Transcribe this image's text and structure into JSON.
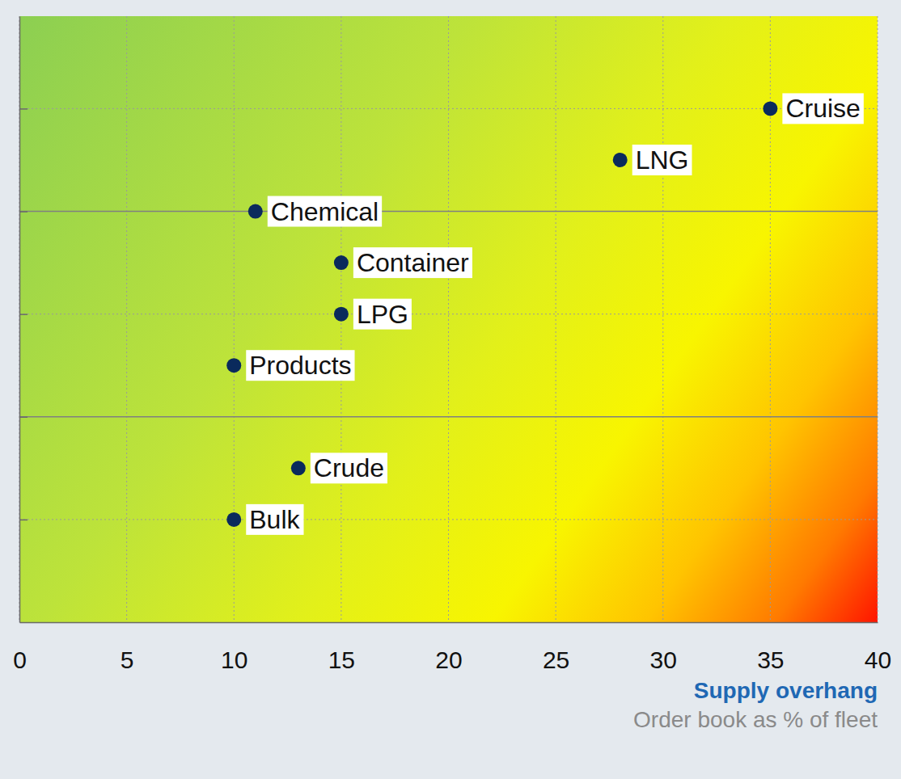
{
  "chart_data": {
    "type": "scatter",
    "xlabel": {
      "title": "Supply overhang",
      "subtitle": "Order book as % of fleet"
    },
    "labels": [
      "Cruise",
      "LNG",
      "Chemical",
      "Container",
      "LPG",
      "Products",
      "Crude",
      "Bulk"
    ],
    "x": [
      35,
      28,
      11,
      15,
      15,
      10,
      13,
      10
    ],
    "values": [
      5,
      4.5,
      4,
      3.5,
      3,
      2.5,
      1.5,
      1
    ],
    "xlim": [
      0,
      40
    ],
    "xticks": [
      0,
      5,
      10,
      15,
      20,
      25,
      30,
      35,
      40
    ],
    "ylim": [
      0,
      5.9
    ],
    "yticks": [
      1,
      2,
      3,
      4,
      5
    ],
    "grid": true,
    "tick_labels": "x",
    "color": "#0a2a5c",
    "marker": "circle"
  }
}
